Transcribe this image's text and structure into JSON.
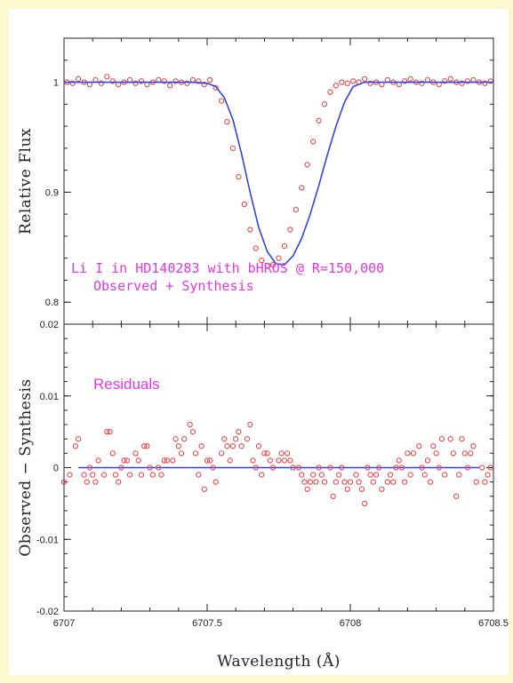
{
  "chart_data": [
    {
      "type": "scatter",
      "panel": "top",
      "xlabel": "",
      "ylabel": "Relative Flux",
      "xlim": [
        6707,
        6708.5
      ],
      "ylim": [
        0.78,
        1.04
      ],
      "y_ticks": [
        {
          "value": 0.8,
          "label": "0.8"
        },
        {
          "value": 0.9,
          "label": "0.9"
        },
        {
          "value": 1.0,
          "label": "1"
        }
      ],
      "annotations": [
        "Li I in HD140283 with bHROS @ R=150,000",
        "Observed + Synthesis"
      ],
      "colors": {
        "observed": "#e8474a",
        "synthesis": "#3344dd",
        "annotation": "#e636e6"
      },
      "series": [
        {
          "role": "observed",
          "style": "open-circles",
          "x": [
            6707.01,
            6707.03,
            6707.05,
            6707.07,
            6707.09,
            6707.11,
            6707.13,
            6707.15,
            6707.17,
            6707.19,
            6707.21,
            6707.23,
            6707.25,
            6707.27,
            6707.29,
            6707.31,
            6707.33,
            6707.35,
            6707.37,
            6707.39,
            6707.41,
            6707.43,
            6707.45,
            6707.47,
            6707.49,
            6707.51,
            6707.53,
            6707.55,
            6707.57,
            6707.59,
            6707.61,
            6707.63,
            6707.65,
            6707.67,
            6707.69,
            6707.71,
            6707.73,
            6707.75,
            6707.77,
            6707.79,
            6707.81,
            6707.83,
            6707.85,
            6707.87,
            6707.89,
            6707.91,
            6707.93,
            6707.95,
            6707.97,
            6707.99,
            6708.01,
            6708.03,
            6708.05,
            6708.07,
            6708.09,
            6708.11,
            6708.13,
            6708.15,
            6708.17,
            6708.19,
            6708.21,
            6708.23,
            6708.25,
            6708.27,
            6708.29,
            6708.31,
            6708.33,
            6708.35,
            6708.37,
            6708.39,
            6708.41,
            6708.43,
            6708.45,
            6708.47,
            6708.49
          ],
          "y": [
            1.0,
            0.999,
            1.003,
            1.0,
            0.998,
            1.002,
            0.999,
            1.005,
            1.001,
            0.998,
            1.0,
            1.002,
            0.999,
            1.001,
            0.998,
            1.0,
            1.002,
            1.001,
            0.997,
            1.001,
            1.0,
            0.999,
            1.002,
            1.001,
            0.998,
            1.002,
            0.995,
            0.983,
            0.964,
            0.94,
            0.914,
            0.889,
            0.866,
            0.849,
            0.838,
            0.833,
            0.834,
            0.84,
            0.851,
            0.866,
            0.884,
            0.904,
            0.925,
            0.946,
            0.965,
            0.98,
            0.991,
            0.997,
            1.0,
            0.999,
            1.001,
            1.0,
            1.003,
            0.999,
            1.0,
            0.998,
            1.002,
            1.0,
            0.998,
            1.001,
            1.003,
            1.0,
            0.999,
            1.002,
            1.0,
            0.998,
            1.001,
            1.003,
            1.0,
            0.999,
            1.001,
            1.002,
            1.0,
            0.999,
            1.001
          ]
        },
        {
          "role": "synthesis",
          "style": "line",
          "x": [
            6707.0,
            6707.45,
            6707.5,
            6707.53,
            6707.56,
            6707.59,
            6707.62,
            6707.65,
            6707.68,
            6707.71,
            6707.74,
            6707.77,
            6707.8,
            6707.83,
            6707.86,
            6707.89,
            6707.92,
            6707.95,
            6707.98,
            6708.01,
            6708.05,
            6708.5
          ],
          "y": [
            1.0,
            1.0,
            0.999,
            0.996,
            0.986,
            0.966,
            0.935,
            0.9,
            0.868,
            0.846,
            0.835,
            0.834,
            0.842,
            0.858,
            0.88,
            0.906,
            0.934,
            0.96,
            0.982,
            0.996,
            1.0,
            1.0
          ]
        }
      ]
    },
    {
      "type": "scatter",
      "panel": "bottom",
      "xlabel": "Wavelength (Å)",
      "ylabel": "Observed − Synthesis",
      "xlim": [
        6707,
        6708.5
      ],
      "ylim": [
        -0.02,
        0.02
      ],
      "x_ticks": [
        {
          "value": 6707.0,
          "label": "6707"
        },
        {
          "value": 6707.5,
          "label": "6707.5"
        },
        {
          "value": 6708.0,
          "label": "6708"
        },
        {
          "value": 6708.5,
          "label": "6708.5"
        }
      ],
      "y_ticks": [
        {
          "value": -0.02,
          "label": "-0.02"
        },
        {
          "value": -0.01,
          "label": "-0.01"
        },
        {
          "value": 0.0,
          "label": "0"
        },
        {
          "value": 0.01,
          "label": "0.01"
        },
        {
          "value": 0.02,
          "label": "0.02"
        }
      ],
      "annotations": [
        "Residuals"
      ],
      "series": [
        {
          "role": "residuals",
          "style": "open-circles",
          "x": [
            6707.0,
            6707.02,
            6707.04,
            6707.05,
            6707.07,
            6707.08,
            6707.09,
            6707.1,
            6707.11,
            6707.12,
            6707.14,
            6707.15,
            6707.16,
            6707.17,
            6707.18,
            6707.19,
            6707.2,
            6707.21,
            6707.22,
            6707.23,
            6707.25,
            6707.26,
            6707.27,
            6707.28,
            6707.29,
            6707.3,
            6707.31,
            6707.33,
            6707.34,
            6707.35,
            6707.36,
            6707.38,
            6707.39,
            6707.4,
            6707.41,
            6707.42,
            6707.44,
            6707.45,
            6707.46,
            6707.47,
            6707.48,
            6707.49,
            6707.5,
            6707.51,
            6707.52,
            6707.53,
            6707.55,
            6707.56,
            6707.57,
            6707.58,
            6707.59,
            6707.6,
            6707.61,
            6707.62,
            6707.64,
            6707.65,
            6707.66,
            6707.67,
            6707.68,
            6707.69,
            6707.7,
            6707.71,
            6707.72,
            6707.73,
            6707.75,
            6707.76,
            6707.77,
            6707.78,
            6707.79,
            6707.8,
            6707.82,
            6707.83,
            6707.84,
            6707.85,
            6707.86,
            6707.87,
            6707.88,
            6707.89,
            6707.9,
            6707.91,
            6707.93,
            6707.94,
            6707.95,
            6707.96,
            6707.97,
            6707.98,
            6707.99,
            6708.0,
            6708.02,
            6708.03,
            6708.04,
            6708.05,
            6708.06,
            6708.07,
            6708.08,
            6708.09,
            6708.1,
            6708.11,
            6708.13,
            6708.14,
            6708.15,
            6708.16,
            6708.17,
            6708.18,
            6708.19,
            6708.2,
            6708.21,
            6708.22,
            6708.24,
            6708.25,
            6708.26,
            6708.27,
            6708.28,
            6708.29,
            6708.3,
            6708.31,
            6708.32,
            6708.33,
            6708.35,
            6708.36,
            6708.37,
            6708.38,
            6708.39,
            6708.4,
            6708.41,
            6708.42,
            6708.43,
            6708.44,
            6708.46,
            6708.47,
            6708.48,
            6708.49
          ],
          "y": [
            -0.002,
            -0.001,
            0.003,
            0.004,
            -0.001,
            -0.002,
            0.0,
            -0.001,
            -0.002,
            0.001,
            -0.001,
            0.005,
            0.005,
            0.002,
            -0.001,
            -0.002,
            0.0,
            0.001,
            0.001,
            -0.001,
            0.002,
            0.001,
            -0.001,
            0.003,
            0.003,
            0.0,
            -0.001,
            0.0,
            -0.001,
            0.001,
            0.001,
            0.001,
            0.004,
            0.003,
            0.002,
            0.004,
            0.006,
            0.005,
            0.002,
            -0.001,
            0.003,
            -0.003,
            0.001,
            0.001,
            0.0,
            -0.002,
            0.002,
            0.004,
            0.003,
            0.001,
            0.003,
            0.004,
            0.005,
            0.003,
            0.004,
            0.006,
            0.001,
            0.0,
            0.003,
            -0.001,
            0.002,
            0.002,
            0.001,
            0.0,
            0.001,
            0.002,
            0.001,
            0.002,
            0.001,
            0.0,
            0.0,
            -0.001,
            -0.002,
            -0.003,
            -0.002,
            -0.001,
            -0.002,
            0.0,
            -0.001,
            -0.002,
            0.0,
            -0.004,
            -0.002,
            -0.001,
            0.0,
            -0.002,
            -0.003,
            -0.002,
            -0.001,
            -0.002,
            -0.003,
            -0.005,
            0.0,
            -0.001,
            -0.002,
            -0.001,
            0.0,
            -0.003,
            -0.002,
            -0.001,
            -0.002,
            0.0,
            0.001,
            0.0,
            -0.002,
            0.002,
            -0.001,
            0.002,
            0.003,
            0.0,
            -0.001,
            0.001,
            -0.002,
            0.003,
            0.002,
            0.0,
            0.004,
            -0.001,
            0.004,
            0.002,
            -0.004,
            -0.001,
            0.004,
            0.002,
            0.0,
            0.002,
            0.003,
            -0.002,
            0.0,
            -0.002,
            -0.001,
            0.0
          ]
        },
        {
          "role": "zero-line",
          "style": "line",
          "x": [
            6707.05,
            6708.45
          ],
          "y": [
            0,
            0
          ]
        }
      ]
    }
  ]
}
